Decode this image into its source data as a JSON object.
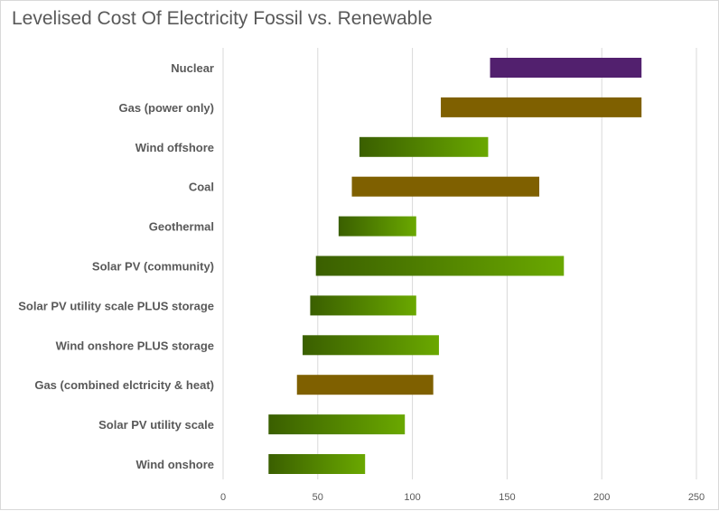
{
  "chart_data": {
    "type": "bar",
    "orientation": "horizontal-floating",
    "title": "Levelised Cost Of Electricity Fossil vs. Renewable",
    "xlim": [
      0,
      250
    ],
    "xticks": [
      0,
      50,
      100,
      150,
      200,
      250
    ],
    "grid": true,
    "categories": [
      "Nuclear",
      "Gas (power only)",
      "Wind offshore",
      "Coal",
      "Geothermal",
      "Solar PV (community)",
      "Solar PV utility scale PLUS storage",
      "Wind onshore PLUS storage",
      "Gas (combined elctricity & heat)",
      "Solar PV utility scale",
      "Wind onshore"
    ],
    "ranges": [
      [
        141,
        221
      ],
      [
        115,
        221
      ],
      [
        72,
        140
      ],
      [
        68,
        167
      ],
      [
        61,
        102
      ],
      [
        49,
        180
      ],
      [
        46,
        102
      ],
      [
        42,
        114
      ],
      [
        39,
        111
      ],
      [
        24,
        96
      ],
      [
        24,
        75
      ]
    ],
    "kinds": [
      "nuclear",
      "fossil",
      "renewable",
      "fossil",
      "renewable",
      "renewable",
      "renewable",
      "renewable",
      "fossil",
      "renewable",
      "renewable"
    ],
    "colors": {
      "nuclear": "#52206e",
      "fossil": "#7f6000",
      "renewable_start": "#3a5f00",
      "renewable_end": "#6aa800"
    }
  }
}
